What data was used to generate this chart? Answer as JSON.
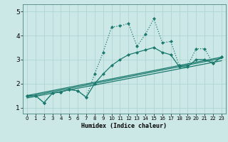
{
  "xlabel": "Humidex (Indice chaleur)",
  "xlim": [
    -0.5,
    23.5
  ],
  "ylim": [
    0.75,
    5.3
  ],
  "yticks": [
    1,
    2,
    3,
    4,
    5
  ],
  "xticks": [
    0,
    1,
    2,
    3,
    4,
    5,
    6,
    7,
    8,
    9,
    10,
    11,
    12,
    13,
    14,
    15,
    16,
    17,
    18,
    19,
    20,
    21,
    22,
    23
  ],
  "background_color": "#cce8e6",
  "grid_color": "#aed4d2",
  "line_color": "#1a7a6e",
  "dotted_x": [
    0,
    1,
    2,
    3,
    4,
    5,
    6,
    7,
    8,
    9,
    10,
    11,
    12,
    13,
    14,
    15,
    16,
    17,
    18,
    19,
    20,
    21,
    22,
    23
  ],
  "dotted_y": [
    1.5,
    1.5,
    1.2,
    1.6,
    1.65,
    1.75,
    1.7,
    1.43,
    2.4,
    3.3,
    4.35,
    4.4,
    4.5,
    3.55,
    4.05,
    4.7,
    3.7,
    3.75,
    2.75,
    2.75,
    3.45,
    3.45,
    2.85,
    3.1
  ],
  "solid_marked_x": [
    0,
    1,
    2,
    3,
    4,
    5,
    6,
    7,
    8,
    9,
    10,
    11,
    12,
    13,
    14,
    15,
    16,
    17,
    18,
    19,
    20,
    21,
    22,
    23
  ],
  "solid_marked_y": [
    1.5,
    1.5,
    1.2,
    1.6,
    1.65,
    1.75,
    1.7,
    1.43,
    2.0,
    2.4,
    2.75,
    3.0,
    3.2,
    3.3,
    3.4,
    3.5,
    3.3,
    3.2,
    2.7,
    2.7,
    3.0,
    3.0,
    2.85,
    3.1
  ],
  "reg_lines": [
    {
      "x0": 0,
      "y0": 1.5,
      "x1": 23,
      "y1": 3.1
    },
    {
      "x0": 0,
      "y0": 1.45,
      "x1": 23,
      "y1": 3.05
    },
    {
      "x0": 0,
      "y0": 1.4,
      "x1": 23,
      "y1": 2.95
    }
  ]
}
